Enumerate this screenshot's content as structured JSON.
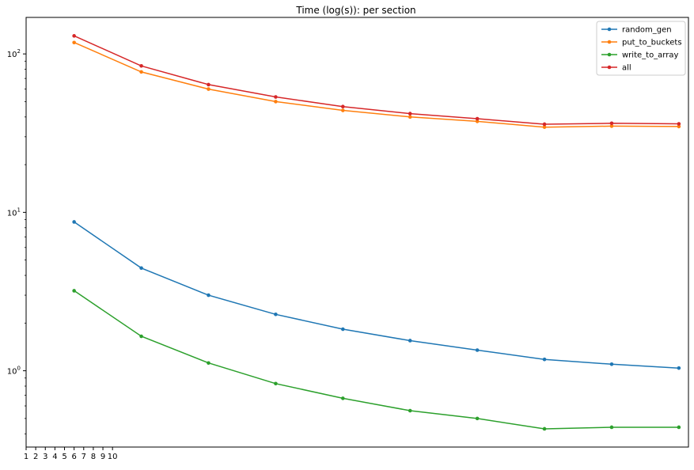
{
  "chart_data": {
    "type": "line",
    "title": "Time (log(s)): per section",
    "xlabel": "",
    "ylabel": "",
    "y_scale": "log",
    "ylim": [
      0.33,
      170
    ],
    "grid": false,
    "legend_position": "top-right",
    "x": [
      6,
      13,
      20,
      27,
      34,
      41,
      48,
      55,
      62,
      69
    ],
    "x_tick_labels": [
      "1",
      "2",
      "3",
      "4",
      "5",
      "6",
      "7",
      "8",
      "9",
      "10"
    ],
    "y_ticks": [
      1,
      10,
      100
    ],
    "y_tick_labels": [
      "10^0",
      "10^1",
      "10^2"
    ],
    "series": [
      {
        "name": "random_gen",
        "color": "#1f77b4",
        "values": [
          8.7,
          4.45,
          3.0,
          2.27,
          1.83,
          1.55,
          1.35,
          1.18,
          1.1,
          1.04
        ]
      },
      {
        "name": "put_to_buckets",
        "color": "#ff7f0e",
        "values": [
          118,
          77,
          60,
          50,
          44,
          40,
          37.5,
          34.5,
          35,
          34.8
        ]
      },
      {
        "name": "write_to_array",
        "color": "#2ca02c",
        "values": [
          3.2,
          1.65,
          1.12,
          0.83,
          0.67,
          0.56,
          0.5,
          0.43,
          0.44,
          0.44
        ]
      },
      {
        "name": "all",
        "color": "#d62728",
        "values": [
          130,
          84,
          64,
          53.5,
          46.5,
          42,
          39,
          36,
          36.5,
          36.2
        ]
      }
    ]
  }
}
